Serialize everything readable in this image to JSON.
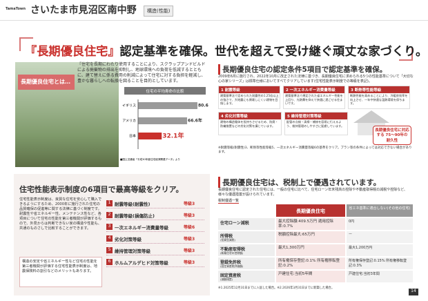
{
  "header": {
    "brand": "TamaTown",
    "title": "さいたま市見沼区南中野",
    "badge": "構造(性能)"
  },
  "headline": {
    "highlight": "『長期優良住宅』",
    "text": "認定基準を確保。世代を超えて受け継ぐ頑丈な家づくり。"
  },
  "intro": {
    "label": "長期優良住宅とは…",
    "text": "『住宅を長期にわたり使用することにより、スクラップアンドビルドによる廃棄物の排出を抑制し、地球環境への負荷を低減するとともに、建て替えに係る費用の削減によって住宅に対する負担を軽減し、豊かな暮らしへの転換を図ることを目的としています。"
  },
  "lifespan_chart": {
    "type": "bar",
    "title": "住宅の平均寿命の比較",
    "categories": [
      "イギリス",
      "アメリカ",
      "日本"
    ],
    "values": [
      80.6,
      66.6,
      32.1
    ],
    "value_labels": [
      "80.6年",
      "66.6年",
      "32.1年"
    ],
    "colors": [
      "#9a9a9a",
      "#9a9a9a",
      "#c9302c"
    ],
    "xlim": [
      0,
      90
    ],
    "note": "■国土交通省「平成30年度住宅経済関連データ」より"
  },
  "conditions": {
    "title": "長期優良住宅の認定条件5項目で認定基準を確保。",
    "text": "2009年6月に施行され、2022年10月に改正された法律に基づき、長期優良住宅に求められる5つの性能基準について「大切な心の家シリーズ」は標準仕様においてすべてクリアしています(住宅性能表示制度での等級を表記)。",
    "items": [
      {
        "title": "1 耐震等級",
        "text": "建築基準法で定められた耐震性の1.25倍以上の強さで、大地震にも倒壊しにくい建物を目指します。"
      },
      {
        "title": "2 一次エネルギー消費量等級",
        "text": "建築基準法で規定された省エネルギー性能を上回り、光熱費を抑えて快適に過ごせる住まいです。"
      },
      {
        "title": "3 断熱等性能等級",
        "text": "断熱性能を高めることにより、冷暖房効率を向上させ、一年中快適な温熱環境を保ちます。"
      },
      {
        "title": "4 劣化対策等級",
        "text": "建物の構造躯体を長持ちさせるため、防腐・防蟻措置などの劣化対策を講じています。"
      },
      {
        "title": "5 維持管理対策等級",
        "text": "配管の点検・清掃・補修を容易に行えるよう、維持管理のしやすさに配慮しています。"
      }
    ],
    "badge": "長期優良住宅に対応する 75〜90年の耐久性",
    "note": "※耐震等級(耐震性)3、断熱等性能等級5、一次エネルギー消費量等級6の基準をクリア。プラン等の条件によっては対応できない場合があります。"
  },
  "grades": {
    "title": "住宅性能表示制度の6項目で最高等級をクリア。",
    "text": "住宅性能表示制度は、良質な住宅を安心して購入できるようにするため、2000年に施行された住宅の品質確保の促進等に関する法律に基づく制度です。耐震性や省エネルギー性、メンテナンス性など、各項目について住宅の性能を第三者機関が評価するもので、外見からは判断できない家の構造や性能も、共通のものさしで比較することができます。",
    "items": [
      {
        "no": "1",
        "name": "耐震等級(耐震性)",
        "grade": "等級3"
      },
      {
        "no": "2",
        "name": "耐震等級(損傷防止)",
        "grade": "等級3"
      },
      {
        "no": "3",
        "name": "一次エネルギー消費量等級",
        "grade": "等級6"
      },
      {
        "no": "4",
        "name": "劣化対策等級",
        "grade": "等級3"
      },
      {
        "no": "5",
        "name": "維持管理対策等級",
        "grade": "等級3"
      },
      {
        "no": "6",
        "name": "ホルムアルデヒド対策等級",
        "grade": "等級3"
      }
    ],
    "note": "構造の安定や省エネルギー性など住宅の性能を第三者機関が評価する住宅性能表示制度は、地震保険料の割引などのメリットもあります。"
  },
  "tax": {
    "title": "長期優良住宅は、税制上で優遇されています。",
    "text": "長期優良住宅に認定された住宅には、一般の住宅に比べて、住宅ローン年末残高の控除や不動産取得税の減税や控除など、様々な優遇措置が設けられています。",
    "sub": "税制優遇一覧",
    "header": [
      "長期優良住宅",
      "省エネ基準に適合しない(その他の住宅)"
    ],
    "rows": [
      {
        "label": "住宅ローン減税",
        "a": "最大控除額:409.5万円 適用控除率:0.7%",
        "b": "0円"
      },
      {
        "label": "所得税",
        "sub": "(投資型減税)",
        "a": "税額控除最大:65万円",
        "b": "ー"
      },
      {
        "label": "不動産取得税",
        "sub": "(新築住宅の控除額)",
        "a": "最大1,300万円",
        "b": "最大1,200万円"
      },
      {
        "label": "登録免許税",
        "sub": "(固定資産税評価額)",
        "a": "所有権保存登記:0.1% 所有権移転登記:0.2%",
        "b": "所有権保存登記:0.15% 所有権移転登記:0.3%"
      },
      {
        "label": "固定資産税",
        "sub": "(減額措置)",
        "a": "戸建住宅:当初5年間",
        "b": "戸建住宅:当初3年間"
      }
    ],
    "note": "※1.2025年12月31日までに入居した場合。※2.2026年3月31日までに新築した場合。"
  },
  "page_number": "14"
}
